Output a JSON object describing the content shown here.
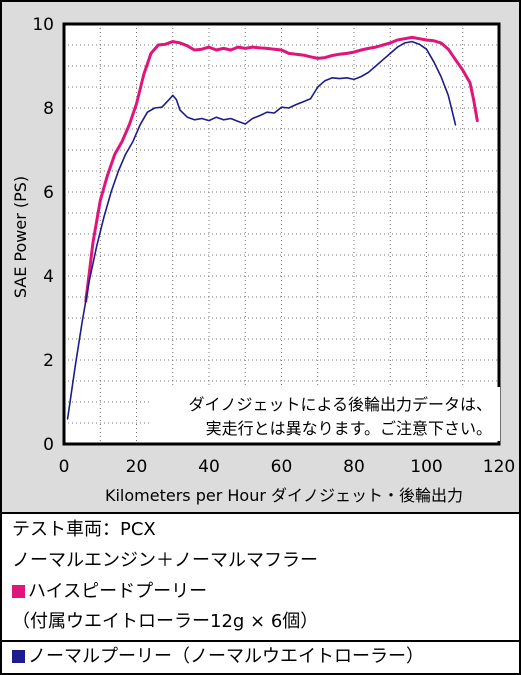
{
  "chart_data": {
    "type": "line",
    "xlabel": "Kilometers per Hour ダイノジェット・後輪出力",
    "ylabel": "SAE Power (PS)",
    "xlim": [
      0,
      120
    ],
    "ylim": [
      0,
      10
    ],
    "x_ticks": [
      "0",
      "20",
      "40",
      "60",
      "80",
      "100",
      "120"
    ],
    "y_ticks": [
      "0",
      "2",
      "4",
      "6",
      "8",
      "10"
    ],
    "grid": true,
    "annotation": [
      "ダイノジェットによる後輪出力データは、",
      "実走行とは異なります。ご注意下さい。"
    ],
    "series": [
      {
        "name": "ハイスピードプーリー",
        "color": "#e0147a",
        "x": [
          6,
          8,
          10,
          12,
          14,
          16,
          18,
          20,
          22,
          24,
          26,
          28,
          30,
          32,
          34,
          36,
          38,
          40,
          42,
          44,
          46,
          48,
          50,
          52,
          54,
          56,
          58,
          60,
          62,
          64,
          66,
          68,
          70,
          72,
          74,
          76,
          78,
          80,
          82,
          84,
          86,
          88,
          90,
          92,
          94,
          96,
          98,
          100,
          102,
          104,
          106,
          108,
          110,
          112,
          113,
          114
        ],
        "y": [
          3.4,
          4.8,
          5.8,
          6.4,
          6.9,
          7.2,
          7.6,
          8.1,
          8.8,
          9.3,
          9.5,
          9.52,
          9.58,
          9.55,
          9.48,
          9.38,
          9.4,
          9.45,
          9.38,
          9.42,
          9.38,
          9.45,
          9.42,
          9.45,
          9.43,
          9.42,
          9.4,
          9.38,
          9.3,
          9.28,
          9.26,
          9.22,
          9.18,
          9.2,
          9.25,
          9.28,
          9.3,
          9.33,
          9.38,
          9.42,
          9.45,
          9.5,
          9.55,
          9.62,
          9.65,
          9.68,
          9.65,
          9.62,
          9.6,
          9.55,
          9.4,
          9.15,
          8.9,
          8.6,
          8.2,
          7.7
        ]
      },
      {
        "name": "ノーマルプーリー",
        "color": "#1c1c8c",
        "x": [
          1,
          3,
          5,
          7,
          9,
          11,
          13,
          15,
          17,
          19,
          21,
          23,
          25,
          27,
          29,
          30,
          31,
          32,
          34,
          36,
          38,
          40,
          42,
          44,
          46,
          48,
          50,
          52,
          54,
          56,
          58,
          60,
          62,
          64,
          66,
          68,
          70,
          72,
          74,
          76,
          78,
          80,
          82,
          84,
          86,
          88,
          90,
          92,
          94,
          96,
          98,
          100,
          102,
          104,
          106,
          108
        ],
        "y": [
          0.6,
          1.8,
          2.9,
          3.9,
          4.7,
          5.4,
          6.0,
          6.5,
          6.9,
          7.2,
          7.6,
          7.9,
          8.0,
          8.02,
          8.2,
          8.3,
          8.2,
          7.95,
          7.78,
          7.72,
          7.75,
          7.7,
          7.78,
          7.72,
          7.75,
          7.68,
          7.62,
          7.75,
          7.82,
          7.9,
          7.88,
          8.02,
          8.0,
          8.08,
          8.15,
          8.22,
          8.5,
          8.65,
          8.72,
          8.7,
          8.72,
          8.68,
          8.75,
          8.85,
          9.0,
          9.15,
          9.3,
          9.45,
          9.55,
          9.58,
          9.52,
          9.4,
          9.1,
          8.75,
          8.3,
          7.6
        ]
      }
    ]
  },
  "legend": {
    "line1": "テスト車両：PCX",
    "line2": "ノーマルエンジン＋ノーマルマフラー",
    "series1_label": "ハイスピードプーリー",
    "series1_sub": "（付属ウエイトローラー12g × 6個）",
    "series2_label": "ノーマルプーリー（ノーマルウエイトローラー）",
    "series1_color": "#e0147a",
    "series2_color": "#1c1c8c"
  }
}
